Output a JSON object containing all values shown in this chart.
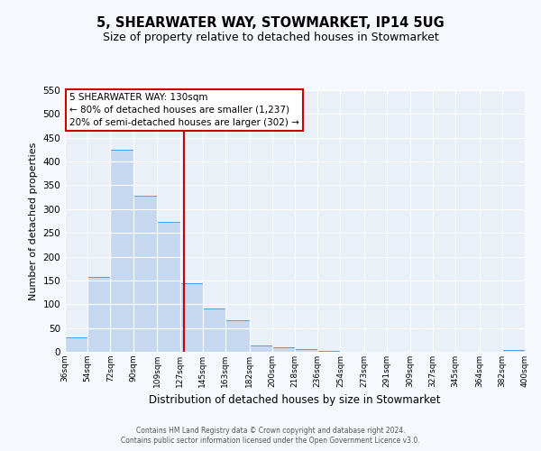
{
  "title": "5, SHEARWATER WAY, STOWMARKET, IP14 5UG",
  "subtitle": "Size of property relative to detached houses in Stowmarket",
  "xlabel": "Distribution of detached houses by size in Stowmarket",
  "ylabel": "Number of detached properties",
  "bin_edges": [
    36,
    54,
    72,
    90,
    109,
    127,
    145,
    163,
    182,
    200,
    218,
    236,
    254,
    273,
    291,
    309,
    327,
    345,
    364,
    382,
    400
  ],
  "bar_heights": [
    30,
    157,
    425,
    328,
    273,
    145,
    91,
    67,
    13,
    10,
    5,
    1,
    0,
    0,
    0,
    0,
    0,
    0,
    0,
    3
  ],
  "bar_color": "#c5d8f0",
  "bar_edge_color": "#5b9bd5",
  "vline_x": 130,
  "vline_color": "#cc0000",
  "ylim": [
    0,
    550
  ],
  "annotation_title": "5 SHEARWATER WAY: 130sqm",
  "annotation_line1": "← 80% of detached houses are smaller (1,237)",
  "annotation_line2": "20% of semi-detached houses are larger (302) →",
  "annotation_box_color": "#ffffff",
  "annotation_box_edge_color": "#cc0000",
  "footer_line1": "Contains HM Land Registry data © Crown copyright and database right 2024.",
  "footer_line2": "Contains public sector information licensed under the Open Government Licence v3.0.",
  "background_color": "#eaf0f8",
  "fig_background_color": "#f5f8fd",
  "grid_color": "#ffffff",
  "title_fontsize": 10.5,
  "subtitle_fontsize": 9,
  "tick_labels": [
    "36sqm",
    "54sqm",
    "72sqm",
    "90sqm",
    "109sqm",
    "127sqm",
    "145sqm",
    "163sqm",
    "182sqm",
    "200sqm",
    "218sqm",
    "236sqm",
    "254sqm",
    "273sqm",
    "291sqm",
    "309sqm",
    "327sqm",
    "345sqm",
    "364sqm",
    "382sqm",
    "400sqm"
  ]
}
